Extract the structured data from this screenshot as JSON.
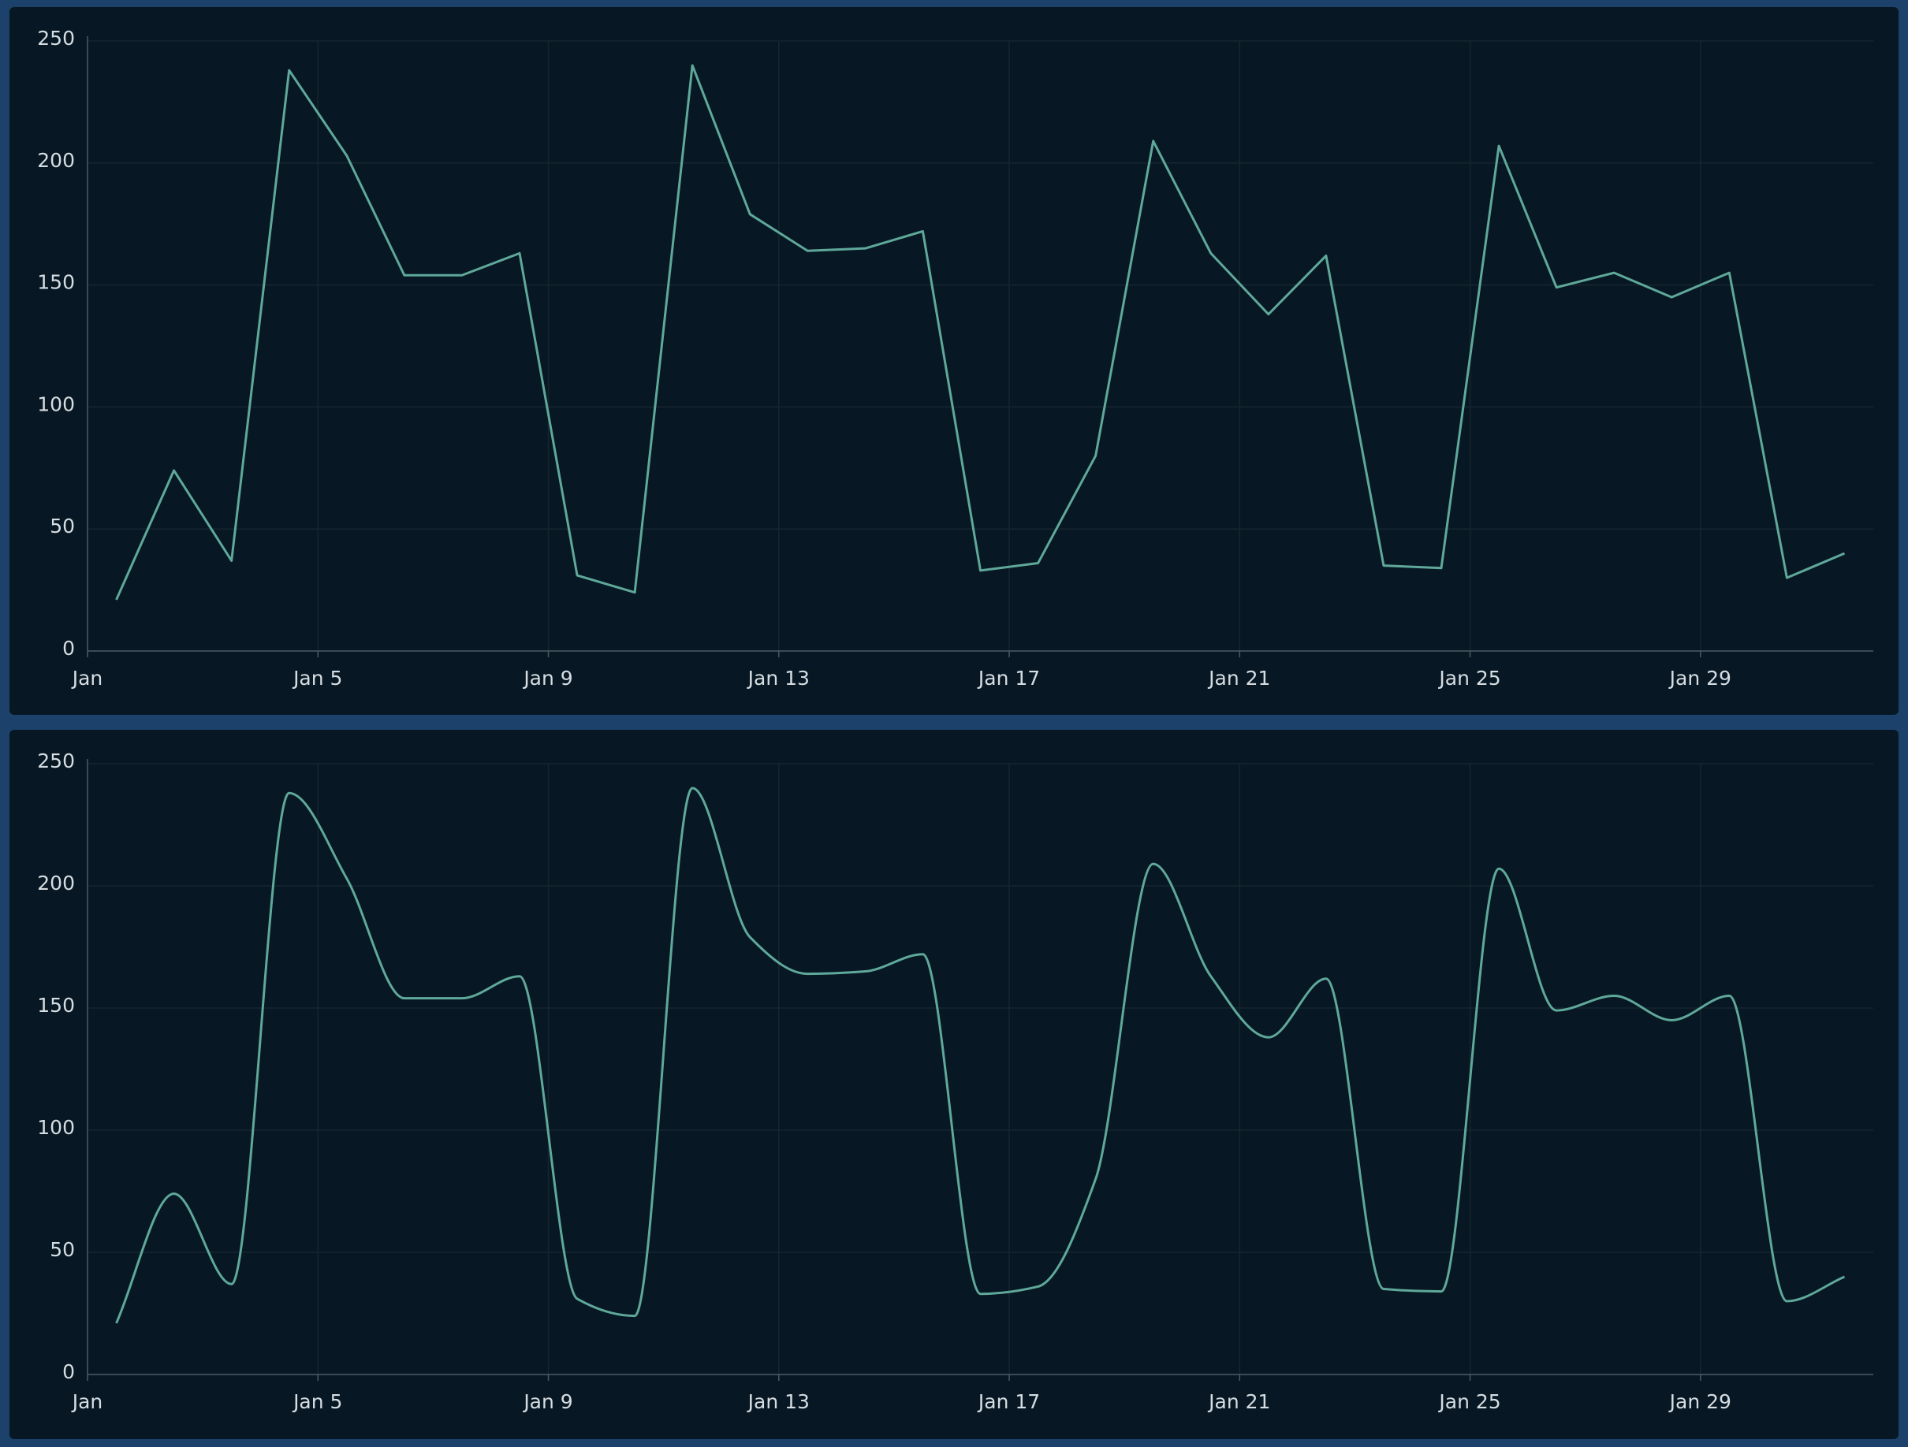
{
  "chart_data": [
    {
      "type": "line",
      "smooth": false,
      "color": "#5fa89a",
      "grid": true,
      "x": [
        1,
        2,
        3,
        4,
        5,
        6,
        7,
        8,
        9,
        10,
        11,
        12,
        13,
        14,
        15,
        16,
        17,
        18,
        19,
        20,
        21,
        22,
        23,
        24,
        25,
        26,
        27,
        28,
        29,
        30,
        31
      ],
      "values": [
        21,
        74,
        37,
        238,
        203,
        154,
        154,
        163,
        31,
        24,
        240,
        179,
        164,
        165,
        172,
        33,
        36,
        80,
        209,
        163,
        138,
        162,
        35,
        34,
        207,
        149,
        155,
        145,
        155,
        30,
        40
      ],
      "xlim": [
        1,
        32
      ],
      "xticks": [
        {
          "value": 1,
          "label": "Jan"
        },
        {
          "value": 5,
          "label": "Jan 5"
        },
        {
          "value": 9,
          "label": "Jan 9"
        },
        {
          "value": 13,
          "label": "Jan 13"
        },
        {
          "value": 17,
          "label": "Jan 17"
        },
        {
          "value": 21,
          "label": "Jan 21"
        },
        {
          "value": 25,
          "label": "Jan 25"
        },
        {
          "value": 29,
          "label": "Jan 29"
        }
      ],
      "ylim": [
        0,
        250
      ],
      "yticks": [
        0,
        50,
        100,
        150,
        200,
        250
      ]
    },
    {
      "type": "line",
      "smooth": true,
      "color": "#5fa89a",
      "grid": true,
      "x": [
        1,
        2,
        3,
        4,
        5,
        6,
        7,
        8,
        9,
        10,
        11,
        12,
        13,
        14,
        15,
        16,
        17,
        18,
        19,
        20,
        21,
        22,
        23,
        24,
        25,
        26,
        27,
        28,
        29,
        30,
        31
      ],
      "values": [
        21,
        74,
        37,
        238,
        203,
        154,
        154,
        163,
        31,
        24,
        240,
        179,
        164,
        165,
        172,
        33,
        36,
        80,
        209,
        163,
        138,
        162,
        35,
        34,
        207,
        149,
        155,
        145,
        155,
        30,
        40
      ],
      "xlim": [
        1,
        32
      ],
      "xticks": [
        {
          "value": 1,
          "label": "Jan"
        },
        {
          "value": 5,
          "label": "Jan 5"
        },
        {
          "value": 9,
          "label": "Jan 9"
        },
        {
          "value": 13,
          "label": "Jan 13"
        },
        {
          "value": 17,
          "label": "Jan 17"
        },
        {
          "value": 21,
          "label": "Jan 21"
        },
        {
          "value": 25,
          "label": "Jan 25"
        },
        {
          "value": 29,
          "label": "Jan 29"
        }
      ],
      "ylim": [
        0,
        250
      ],
      "yticks": [
        0,
        50,
        100,
        150,
        200,
        250
      ]
    }
  ]
}
